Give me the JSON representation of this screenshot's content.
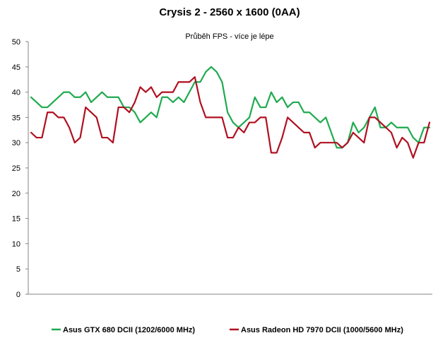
{
  "chart_data": {
    "type": "line",
    "title": "Crysis 2 - 2560 x 1600 (0AA)",
    "subtitle": "Průběh FPS - více je lépe",
    "xlabel": "",
    "ylabel": "",
    "ylim": [
      0,
      50
    ],
    "yticks": [
      0,
      5,
      10,
      15,
      20,
      25,
      30,
      35,
      40,
      45,
      50
    ],
    "grid": false,
    "legend_position": "bottom",
    "series": [
      {
        "name": "Asus GTX 680 DCII (1202/6000 MHz)",
        "color": "#1faa4f",
        "values": [
          39,
          38,
          37,
          37,
          38,
          39,
          40,
          40,
          39,
          39,
          40,
          38,
          39,
          40,
          39,
          39,
          39,
          37,
          37,
          36,
          34,
          35,
          36,
          35,
          39,
          39,
          38,
          39,
          38,
          40,
          42,
          42,
          44,
          45,
          44,
          42,
          36,
          34,
          33,
          34,
          35,
          39,
          37,
          37,
          40,
          38,
          39,
          37,
          38,
          38,
          36,
          36,
          35,
          34,
          35,
          32,
          29,
          29,
          30,
          34,
          32,
          33,
          35,
          37,
          33,
          33,
          34,
          33,
          33,
          33,
          31,
          30,
          33,
          33
        ]
      },
      {
        "name": "Asus Radeon HD 7970 DCII (1000/5600 MHz)",
        "color": "#b01020",
        "values": [
          32,
          31,
          31,
          36,
          36,
          35,
          35,
          33,
          30,
          31,
          37,
          36,
          35,
          31,
          31,
          30,
          37,
          37,
          36,
          38,
          41,
          40,
          41,
          39,
          40,
          40,
          40,
          42,
          42,
          42,
          43,
          38,
          35,
          35,
          35,
          35,
          31,
          31,
          33,
          32,
          34,
          34,
          35,
          35,
          28,
          28,
          31,
          35,
          34,
          33,
          32,
          32,
          29,
          30,
          30,
          30,
          30,
          29,
          30,
          32,
          31,
          30,
          35,
          35,
          34,
          33,
          32,
          29,
          31,
          30,
          27,
          30,
          30,
          34
        ]
      }
    ]
  }
}
